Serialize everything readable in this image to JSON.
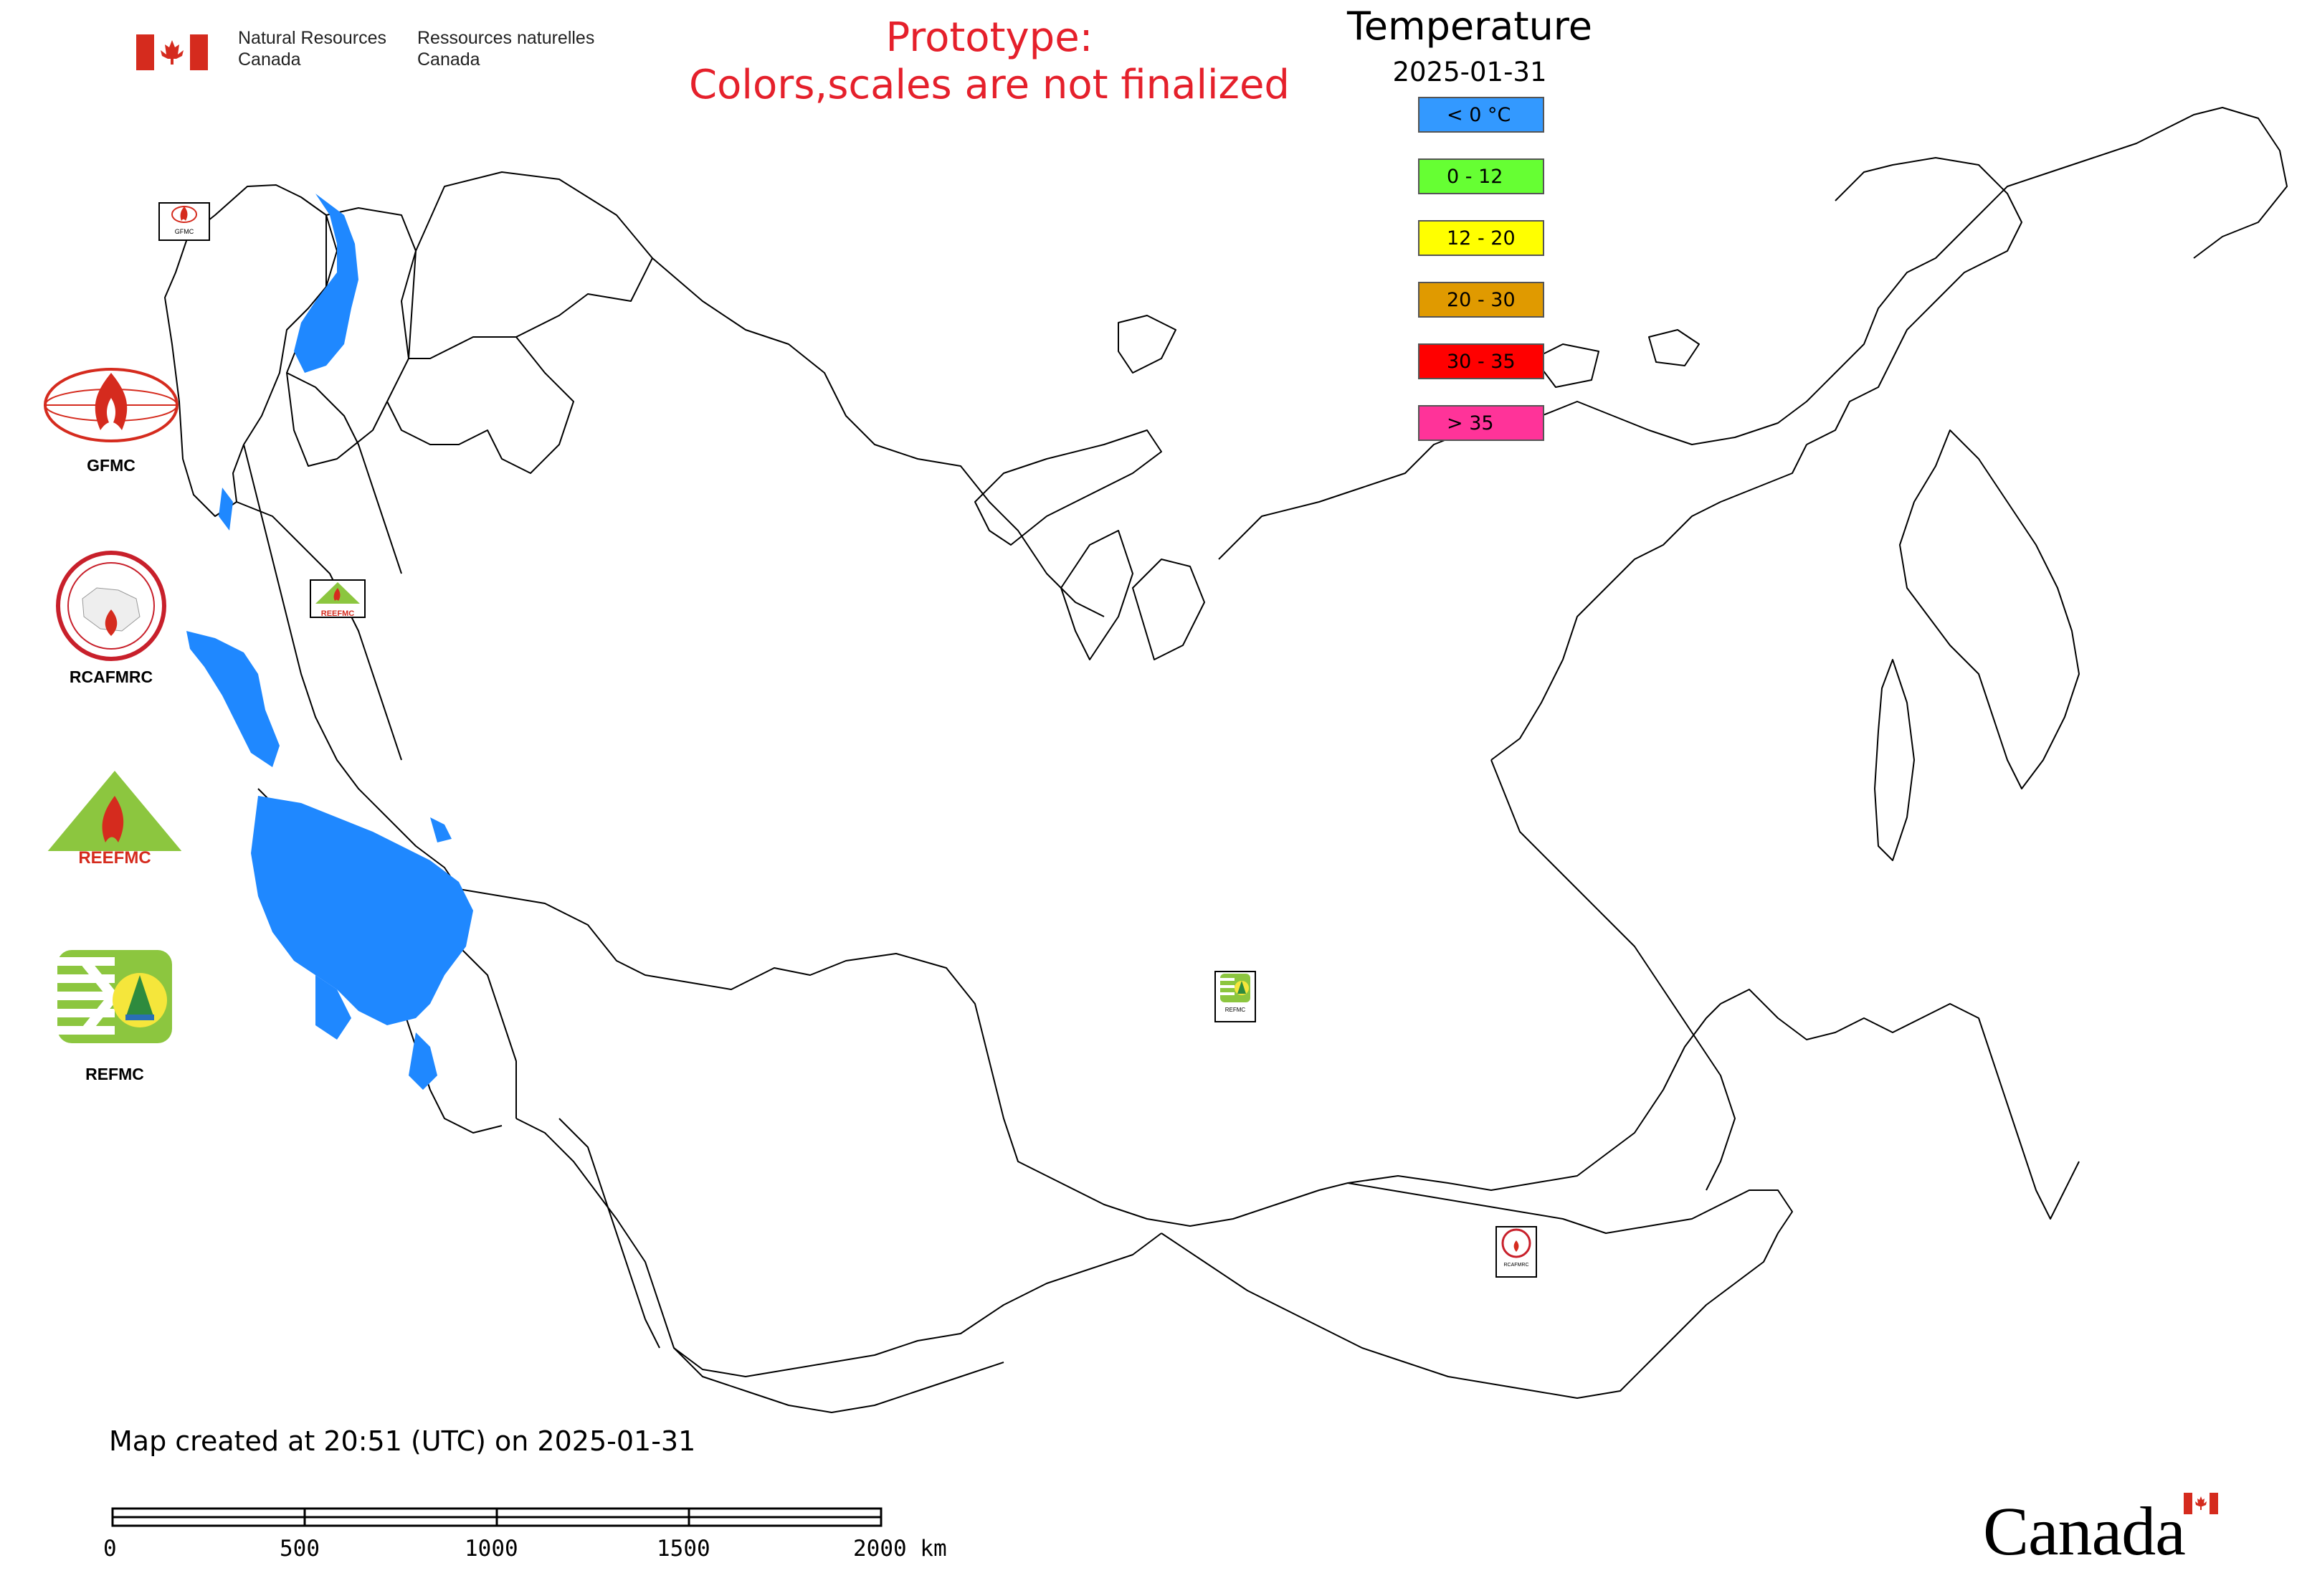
{
  "header": {
    "agency_en_line1": "Natural Resources",
    "agency_en_line2": "Canada",
    "agency_fr_line1": "Ressources naturelles",
    "agency_fr_line2": "Canada"
  },
  "prototype": {
    "line1": "Prototype:",
    "line2": "Colors,scales are not finalized"
  },
  "legend": {
    "title": "Temperature",
    "date": "2025-01-31",
    "items": [
      {
        "label": "< 0 °C",
        "color": "#3399ff"
      },
      {
        "label": "0 - 12",
        "color": "#66ff33"
      },
      {
        "label": "12 - 20",
        "color": "#ffff00"
      },
      {
        "label": "20 - 30",
        "color": "#e09a00"
      },
      {
        "label": "30 - 35",
        "color": "#ff0000"
      },
      {
        "label": "> 35",
        "color": "#ff3399"
      }
    ]
  },
  "side_logos": [
    {
      "label": "GFMC",
      "icon": "gfmc-globe-flame-icon"
    },
    {
      "label": "RCAFMRC",
      "icon": "rcafmrc-circle-seal-icon"
    },
    {
      "label": "",
      "icon": "reefmc-triangle-icon",
      "logo_text": "REEFMC"
    },
    {
      "label": "REFMC",
      "icon": "refmc-sigma-icon"
    }
  ],
  "map_markers": [
    {
      "name": "gfmc-map-marker",
      "caption": "GFMC"
    },
    {
      "name": "reefmc-map-marker",
      "caption": "REEFMC"
    },
    {
      "name": "refmc-map-marker",
      "caption": "REFMC"
    },
    {
      "name": "rcafmrc-map-marker",
      "caption": "RCAFMRC"
    }
  ],
  "footer": {
    "created": "Map created at 20:51 (UTC) on 2025-01-31"
  },
  "scale_bar": {
    "ticks": [
      "0",
      "500",
      "1000",
      "1500",
      "2000 km"
    ]
  },
  "wordmark": {
    "text": "Canada",
    "flag_red": "#d52b1e"
  },
  "colors": {
    "cold_region": "#1f88ff",
    "prototype_text": "#e5202b",
    "border_line": "#000000"
  }
}
